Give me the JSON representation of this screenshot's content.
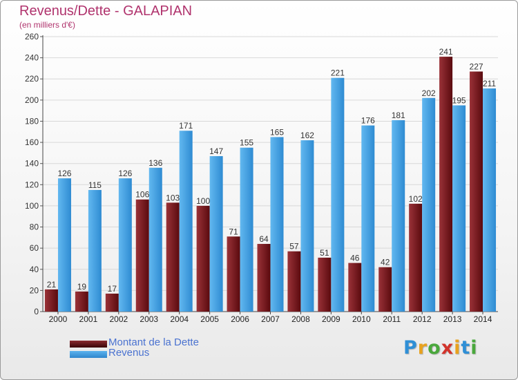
{
  "header": {
    "title": "Revenus/Dette - GALAPIAN",
    "subtitle": "(en milliers d'€)"
  },
  "chart_data": {
    "type": "bar",
    "categories": [
      "2000",
      "2001",
      "2002",
      "2003",
      "2004",
      "2005",
      "2006",
      "2007",
      "2008",
      "2009",
      "2010",
      "2011",
      "2012",
      "2013",
      "2014"
    ],
    "series": [
      {
        "name": "Montant de la Dette",
        "color": "#7a1a1e",
        "values": [
          21,
          19,
          17,
          106,
          103,
          100,
          71,
          64,
          57,
          51,
          46,
          42,
          102,
          241,
          227
        ]
      },
      {
        "name": "Revenus",
        "color": "#3d9ee3",
        "values": [
          126,
          115,
          126,
          136,
          171,
          147,
          155,
          165,
          162,
          221,
          176,
          181,
          202,
          195,
          211
        ]
      }
    ],
    "ylim": [
      0,
      260
    ],
    "yticks": [
      0,
      20,
      40,
      60,
      80,
      100,
      120,
      140,
      160,
      180,
      200,
      220,
      240,
      260
    ],
    "grid": true,
    "legend_position": "bottom-left"
  },
  "legend": {
    "items": [
      {
        "label": "Montant de la Dette",
        "color": "#6b0f14"
      },
      {
        "label": "Revenus",
        "color": "#3d9ee3"
      }
    ]
  },
  "logo": {
    "letters": [
      "P",
      "r",
      "o",
      "x",
      "i",
      "t",
      "i"
    ],
    "colors": [
      "#2f8fd6",
      "#e8a21f",
      "#4aa83c",
      "#d2332b",
      "#e8a21f",
      "#2f8fd6",
      "#4aa83c"
    ]
  }
}
